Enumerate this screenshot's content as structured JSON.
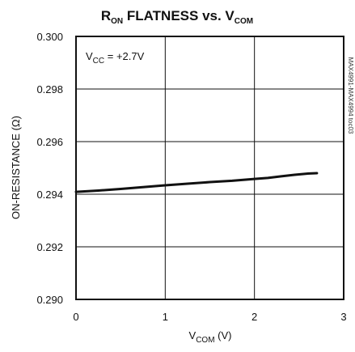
{
  "chart_data": {
    "type": "line",
    "title": {
      "main": "R",
      "sub": "ON",
      "rest": " FLATNESS vs. V",
      "sub2": "COM"
    },
    "xlabel": {
      "main": "V",
      "sub": "COM",
      "rest": " (V)"
    },
    "ylabel": "ON-RESISTANCE (Ω)",
    "annotation": {
      "main": "V",
      "sub": "CC",
      "rest": " = +2.7V"
    },
    "side_code": "MAX4991-MAX4994 toc03",
    "xlim": [
      0,
      3
    ],
    "ylim": [
      0.29,
      0.3
    ],
    "x_ticks": [
      0,
      1,
      2,
      3
    ],
    "x_tick_labels": [
      "0",
      "1",
      "2",
      "3"
    ],
    "y_ticks": [
      0.29,
      0.292,
      0.294,
      0.296,
      0.298,
      0.3
    ],
    "y_tick_labels": [
      "0.290",
      "0.292",
      "0.294",
      "0.296",
      "0.298",
      "0.300"
    ],
    "grid": true,
    "line_color": "#111111",
    "series": [
      {
        "x": [
          0.0,
          0.25,
          0.5,
          0.75,
          1.0,
          1.25,
          1.5,
          1.75,
          2.0,
          2.15,
          2.3,
          2.45,
          2.55,
          2.62,
          2.7
        ],
        "y": [
          0.29409,
          0.29414,
          0.2942,
          0.29427,
          0.29434,
          0.2944,
          0.29446,
          0.29451,
          0.29458,
          0.29462,
          0.29468,
          0.29474,
          0.29477,
          0.29479,
          0.2948
        ]
      }
    ]
  }
}
